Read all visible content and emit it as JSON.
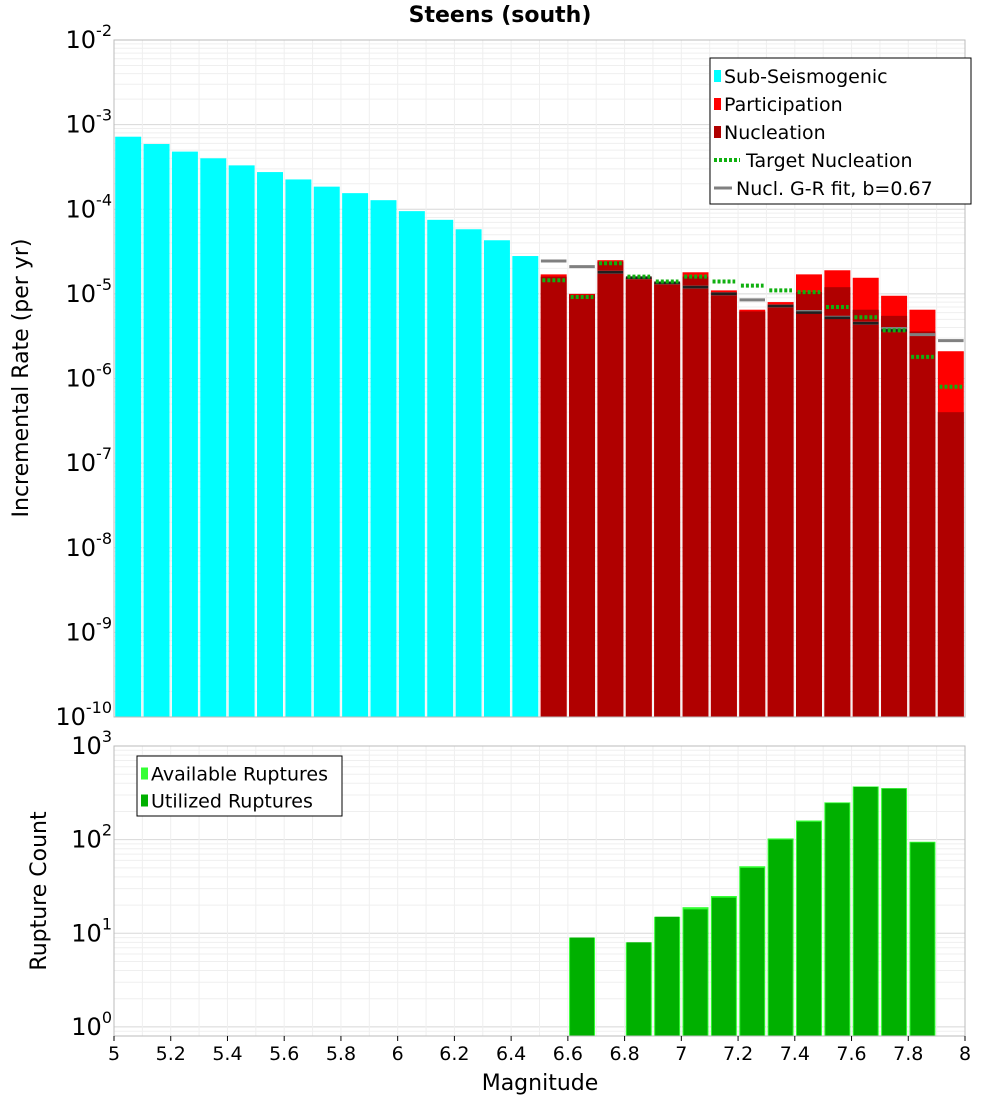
{
  "title": "Steens (south)",
  "colors": {
    "sub_seismogenic": "#00ffff",
    "participation": "#ff0000",
    "nucleation": "#b00000",
    "target_nucleation": "#10b010",
    "gr_fit": "#808080",
    "available": "#33ff33",
    "utilized": "#00b000"
  },
  "chart_data": [
    {
      "type": "bar",
      "name": "incremental-rate",
      "title": "Steens (south)",
      "xlabel": "",
      "ylabel": "Incremental Rate (per yr)",
      "yscale": "log",
      "xlim": [
        5,
        8
      ],
      "ylim": [
        1e-10,
        0.01
      ],
      "bin_width": 0.1,
      "y_tick_labels": [
        {
          "base": "10",
          "exp": "-10",
          "value": 1e-10
        },
        {
          "base": "10",
          "exp": "-9",
          "value": 1e-09
        },
        {
          "base": "10",
          "exp": "-8",
          "value": 1e-08
        },
        {
          "base": "10",
          "exp": "-7",
          "value": 1e-07
        },
        {
          "base": "10",
          "exp": "-6",
          "value": 1e-06
        },
        {
          "base": "10",
          "exp": "-5",
          "value": 1e-05
        },
        {
          "base": "10",
          "exp": "-4",
          "value": 0.0001
        },
        {
          "base": "10",
          "exp": "-3",
          "value": 0.001
        },
        {
          "base": "10",
          "exp": "-2",
          "value": 0.01
        }
      ],
      "legend": {
        "position": "top-right",
        "entries": [
          {
            "label": "Sub-Seismogenic",
            "kind": "box",
            "color": "#00ffff"
          },
          {
            "label": "Participation",
            "kind": "box",
            "color": "#ff0000"
          },
          {
            "label": "Nucleation",
            "kind": "box",
            "color": "#b00000"
          },
          {
            "label": "Target Nucleation",
            "kind": "dotted",
            "color": "#10b010"
          },
          {
            "label": "Nucl. G-R fit, b=0.67",
            "kind": "line",
            "color": "#808080"
          }
        ]
      },
      "series": [
        {
          "name": "Sub-Seismogenic",
          "x": [
            5.05,
            5.15,
            5.25,
            5.35,
            5.45,
            5.55,
            5.65,
            5.75,
            5.85,
            5.95,
            6.05,
            6.15,
            6.25,
            6.35,
            6.45
          ],
          "values": [
            0.00072,
            0.00059,
            0.00048,
            0.0004,
            0.00033,
            0.000275,
            0.000225,
            0.000185,
            0.000155,
            0.000128,
            9.5e-05,
            7.5e-05,
            5.8e-05,
            4.3e-05,
            2.8e-05
          ]
        },
        {
          "name": "Participation",
          "x": [
            6.55,
            6.65,
            6.75,
            6.85,
            6.95,
            7.05,
            7.15,
            7.25,
            7.35,
            7.45,
            7.55,
            7.65,
            7.75,
            7.85,
            7.95
          ],
          "values": [
            1.7e-05,
            1e-05,
            2.5e-05,
            1.6e-05,
            1.4e-05,
            1.8e-05,
            1.1e-05,
            6.5e-06,
            8e-06,
            1.7e-05,
            1.9e-05,
            1.55e-05,
            9.5e-06,
            6.5e-06,
            2.1e-06
          ]
        },
        {
          "name": "Nucleation",
          "x": [
            6.55,
            6.65,
            6.75,
            6.85,
            6.95,
            7.05,
            7.15,
            7.25,
            7.35,
            7.45,
            7.55,
            7.65,
            7.75,
            7.85,
            7.95
          ],
          "values": [
            1.6e-05,
            9.8e-06,
            2.4e-05,
            1.55e-05,
            1.35e-05,
            1.6e-05,
            1.05e-05,
            6.2e-06,
            7.5e-06,
            1.05e-05,
            1.2e-05,
            6.5e-06,
            5.5e-06,
            3.6e-06,
            4e-07
          ]
        },
        {
          "name": "Target Nucleation",
          "x": [
            6.55,
            6.65,
            6.75,
            6.85,
            6.95,
            7.05,
            7.15,
            7.25,
            7.35,
            7.45,
            7.55,
            7.65,
            7.75,
            7.85,
            7.95
          ],
          "values": [
            1.45e-05,
            9.2e-06,
            2.3e-05,
            1.6e-05,
            1.4e-05,
            1.6e-05,
            1.4e-05,
            1.25e-05,
            1.1e-05,
            1.05e-05,
            7e-06,
            5.3e-06,
            3.7e-06,
            1.8e-06,
            8e-07
          ]
        },
        {
          "name": "Nucl. G-R fit, b=0.67",
          "x": [
            6.55,
            6.65,
            6.75,
            6.85,
            6.95,
            7.05,
            7.15,
            7.25,
            7.35,
            7.45,
            7.55,
            7.65,
            7.75,
            7.85,
            7.95
          ],
          "values": [
            2.45e-05,
            2.1e-05,
            1.8e-05,
            1.55e-05,
            1.35e-05,
            1.2e-05,
            1e-05,
            8.5e-06,
            7.2e-06,
            6.2e-06,
            5.3e-06,
            4.5e-06,
            3.9e-06,
            3.3e-06,
            2.8e-06
          ]
        }
      ],
      "segment_markers": {
        "color": "#202020",
        "x": [
          6.75,
          6.85,
          6.95,
          7.05,
          7.15,
          7.35,
          7.45,
          7.55,
          7.65,
          7.75
        ],
        "values": [
          1.8e-05,
          1.55e-05,
          1.35e-05,
          1.2e-05,
          1e-05,
          7.2e-06,
          6e-06,
          5.2e-06,
          4.5e-06,
          3.7e-06
        ]
      }
    },
    {
      "type": "bar",
      "name": "rupture-count",
      "title": "",
      "xlabel": "Magnitude",
      "ylabel": "Rupture Count",
      "yscale": "log",
      "xlim": [
        5,
        8
      ],
      "ylim": [
        0.8,
        1000
      ],
      "bin_width": 0.1,
      "x_ticks": [
        5,
        5.2,
        5.4,
        5.6,
        5.8,
        6,
        6.2,
        6.4,
        6.6,
        6.8,
        7,
        7.2,
        7.4,
        7.6,
        7.8,
        8
      ],
      "x_tick_labels": [
        "5",
        "5.2",
        "5.4",
        "5.6",
        "5.8",
        "6",
        "6.2",
        "6.4",
        "6.6",
        "6.8",
        "7",
        "7.2",
        "7.4",
        "7.6",
        "7.8",
        "8"
      ],
      "y_tick_labels": [
        {
          "base": "10",
          "exp": "0",
          "value": 1
        },
        {
          "base": "10",
          "exp": "1",
          "value": 10
        },
        {
          "base": "10",
          "exp": "2",
          "value": 100
        },
        {
          "base": "10",
          "exp": "3",
          "value": 1000
        }
      ],
      "legend": {
        "position": "top-left",
        "entries": [
          {
            "label": "Available Ruptures",
            "kind": "box",
            "color": "#33ff33"
          },
          {
            "label": "Utilized Ruptures",
            "kind": "box",
            "color": "#00b000"
          }
        ]
      },
      "series": [
        {
          "name": "Available Ruptures",
          "x": [
            6.65,
            6.85,
            6.95,
            7.05,
            7.15,
            7.25,
            7.35,
            7.45,
            7.55,
            7.65,
            7.75,
            7.85
          ],
          "values": [
            9,
            8,
            15,
            19,
            25,
            52,
            103,
            160,
            250,
            370,
            355,
            95
          ]
        },
        {
          "name": "Utilized Ruptures",
          "x": [
            6.65,
            6.85,
            6.95,
            7.05,
            7.15,
            7.25,
            7.35,
            7.45,
            7.55,
            7.65,
            7.75,
            7.85
          ],
          "values": [
            9,
            8,
            15,
            18,
            24,
            50,
            100,
            155,
            245,
            365,
            350,
            93
          ]
        }
      ]
    }
  ]
}
